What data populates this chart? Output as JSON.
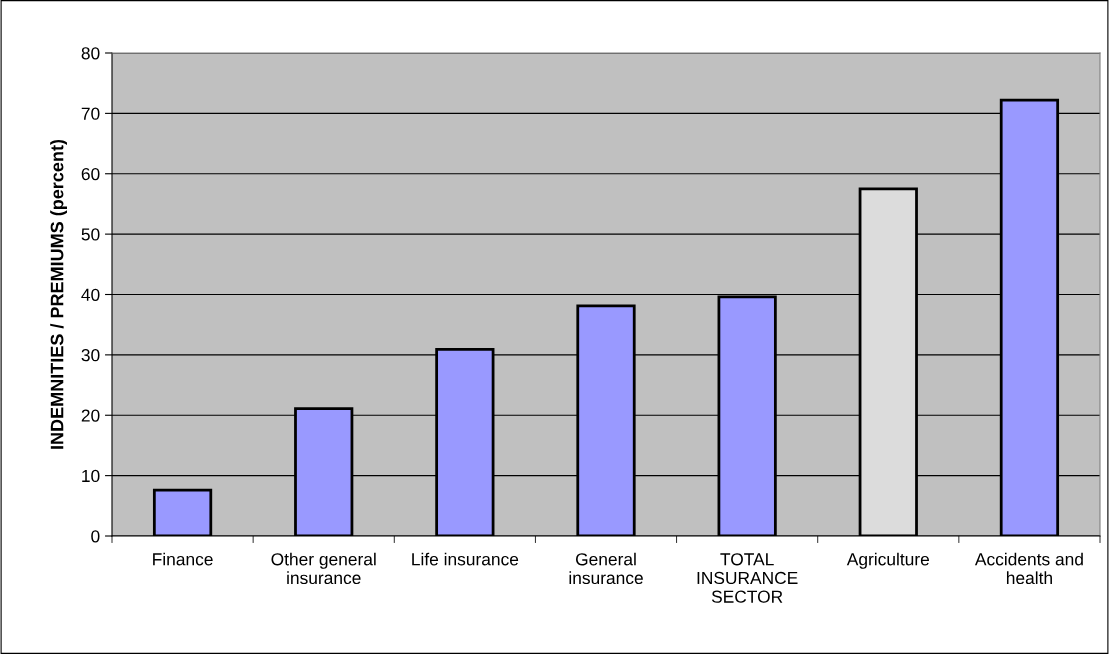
{
  "chart_data": {
    "type": "bar",
    "ylabel": "INDEMNITIES / PREMIUMS (percent)",
    "categories": [
      "Finance",
      "Other general\ninsurance",
      "Life insurance",
      "General\ninsurance",
      "TOTAL\nINSURANCE\nSECTOR",
      "Agriculture",
      "Accidents and\nhealth"
    ],
    "values": [
      7.6,
      21.1,
      30.9,
      38.1,
      39.6,
      57.5,
      72.2
    ],
    "colors": [
      "#9999ff",
      "#9999ff",
      "#9999ff",
      "#9999ff",
      "#9999ff",
      "#dcdcdc",
      "#9999ff"
    ],
    "ylim": [
      0,
      80
    ],
    "yticks": [
      0,
      10,
      20,
      30,
      40,
      50,
      60,
      70,
      80
    ],
    "grid": "y"
  }
}
